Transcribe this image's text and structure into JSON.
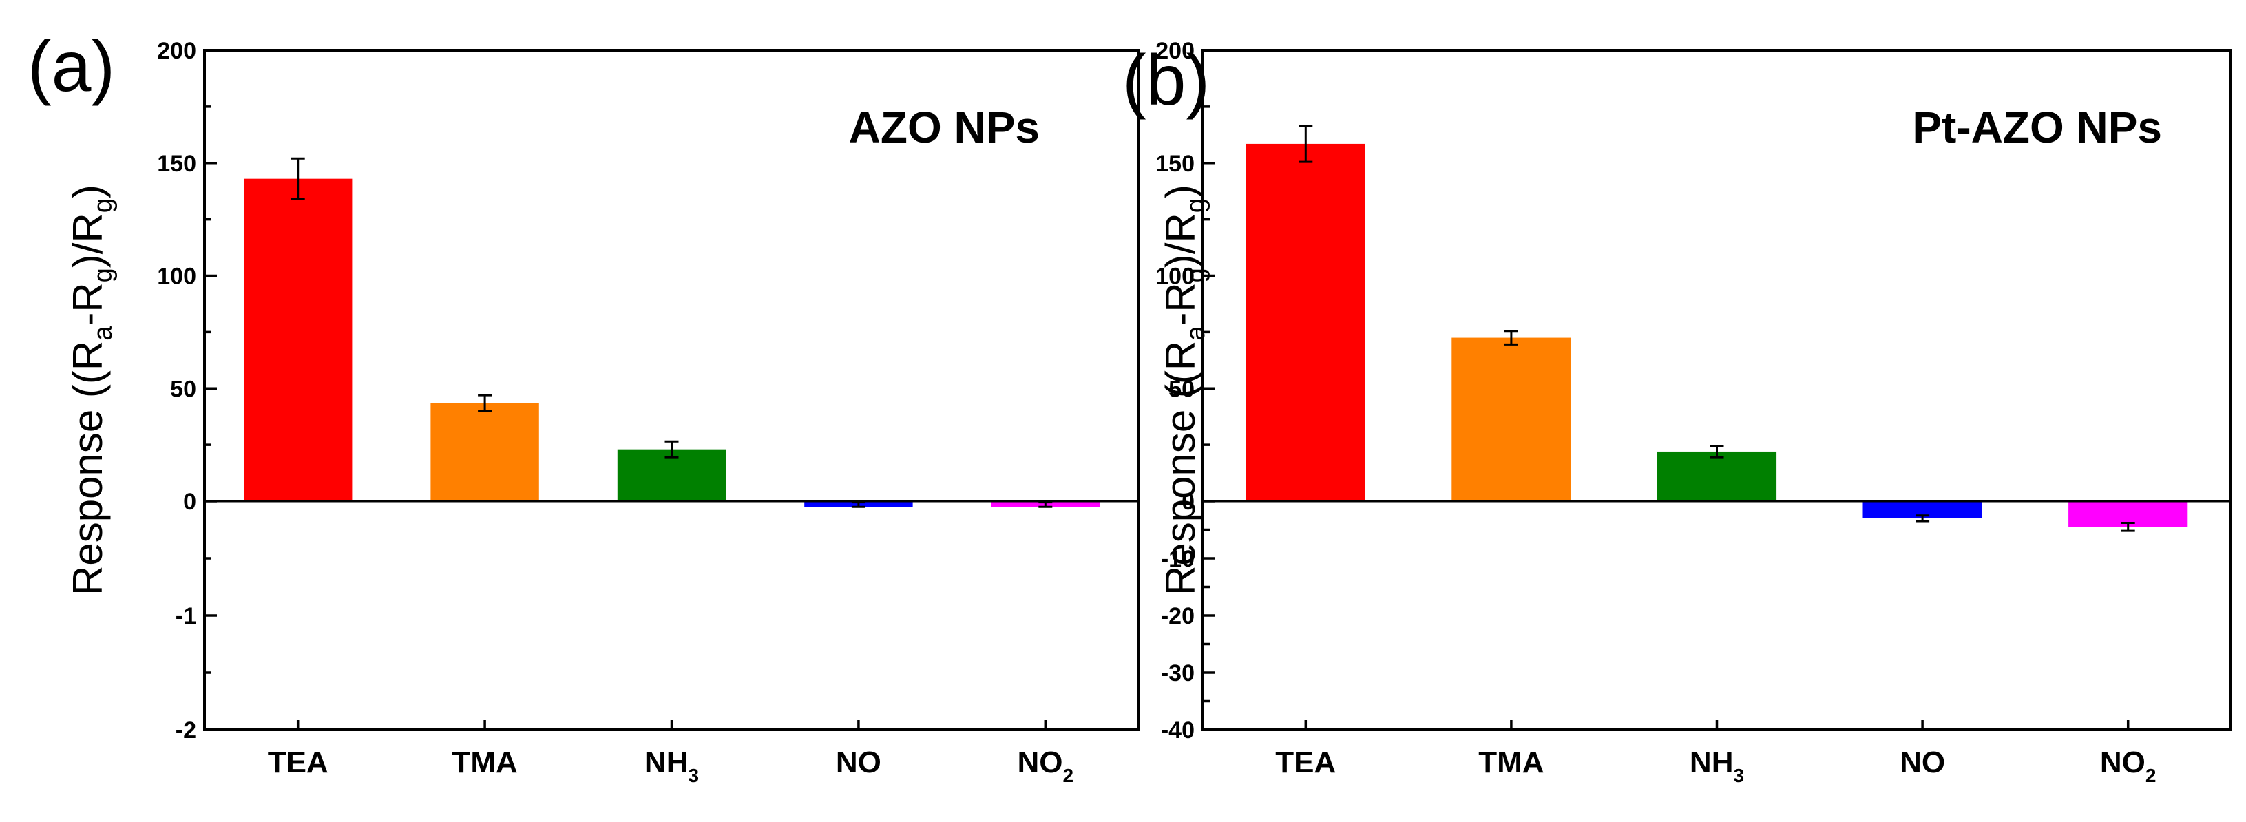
{
  "chart_data": [
    {
      "type": "bar",
      "panel_label": "(a)",
      "title": "AZO NPs",
      "ylabel": "Response ((Ra-Rg)/Rg)",
      "ylabel_parts": [
        "Response ((R",
        "a",
        "-R",
        "g",
        ")/R",
        "g",
        ")"
      ],
      "categories": [
        "TEA",
        "TMA",
        "NH3",
        "NO",
        "NO2"
      ],
      "category_labels": [
        {
          "main": "TEA",
          "sub": ""
        },
        {
          "main": "TMA",
          "sub": ""
        },
        {
          "main": "NH",
          "sub": "3"
        },
        {
          "main": "NO",
          "sub": ""
        },
        {
          "main": "NO",
          "sub": "2"
        }
      ],
      "values": [
        143,
        43.5,
        23,
        -0.03,
        -0.03
      ],
      "errors": [
        9,
        3.5,
        3.5,
        0.02,
        0.02
      ],
      "colors": [
        "#ff0000",
        "#ff8000",
        "#008000",
        "#0000ff",
        "#ff00ff"
      ],
      "y_segments": [
        {
          "range": [
            -2,
            0
          ],
          "ticks": [
            -2,
            -1,
            0
          ],
          "minor_step": 0.5
        },
        {
          "range": [
            0,
            200
          ],
          "ticks": [
            50,
            100,
            150,
            200
          ],
          "minor_step": 25
        }
      ],
      "tick_labels": [
        "-2",
        "-1",
        "0",
        "50",
        "100",
        "150",
        "200"
      ]
    },
    {
      "type": "bar",
      "panel_label": "(b)",
      "title": "Pt-AZO NPs",
      "ylabel": "Response ((Ra-Rg)/Rg)",
      "ylabel_parts": [
        "Response ((R",
        "a",
        "-R",
        "g",
        ")/R",
        "g",
        ")"
      ],
      "categories": [
        "TEA",
        "TMA",
        "NH3",
        "NO",
        "NO2"
      ],
      "category_labels": [
        {
          "main": "TEA",
          "sub": ""
        },
        {
          "main": "TMA",
          "sub": ""
        },
        {
          "main": "NH",
          "sub": "3"
        },
        {
          "main": "NO",
          "sub": ""
        },
        {
          "main": "NO",
          "sub": "2"
        }
      ],
      "values": [
        158.5,
        72.5,
        22,
        -3,
        -4.5
      ],
      "errors": [
        8,
        3,
        2.5,
        0.5,
        0.7
      ],
      "colors": [
        "#ff0000",
        "#ff8000",
        "#008000",
        "#0000ff",
        "#ff00ff"
      ],
      "y_segments": [
        {
          "range": [
            -40,
            0
          ],
          "ticks": [
            -40,
            -30,
            -20,
            -10,
            0
          ],
          "minor_step": 5
        },
        {
          "range": [
            0,
            200
          ],
          "ticks": [
            50,
            100,
            150,
            200
          ],
          "minor_step": 25
        }
      ],
      "tick_labels": [
        "-40",
        "-30",
        "-20",
        "-10",
        "0",
        "50",
        "100",
        "150",
        "200"
      ]
    }
  ]
}
